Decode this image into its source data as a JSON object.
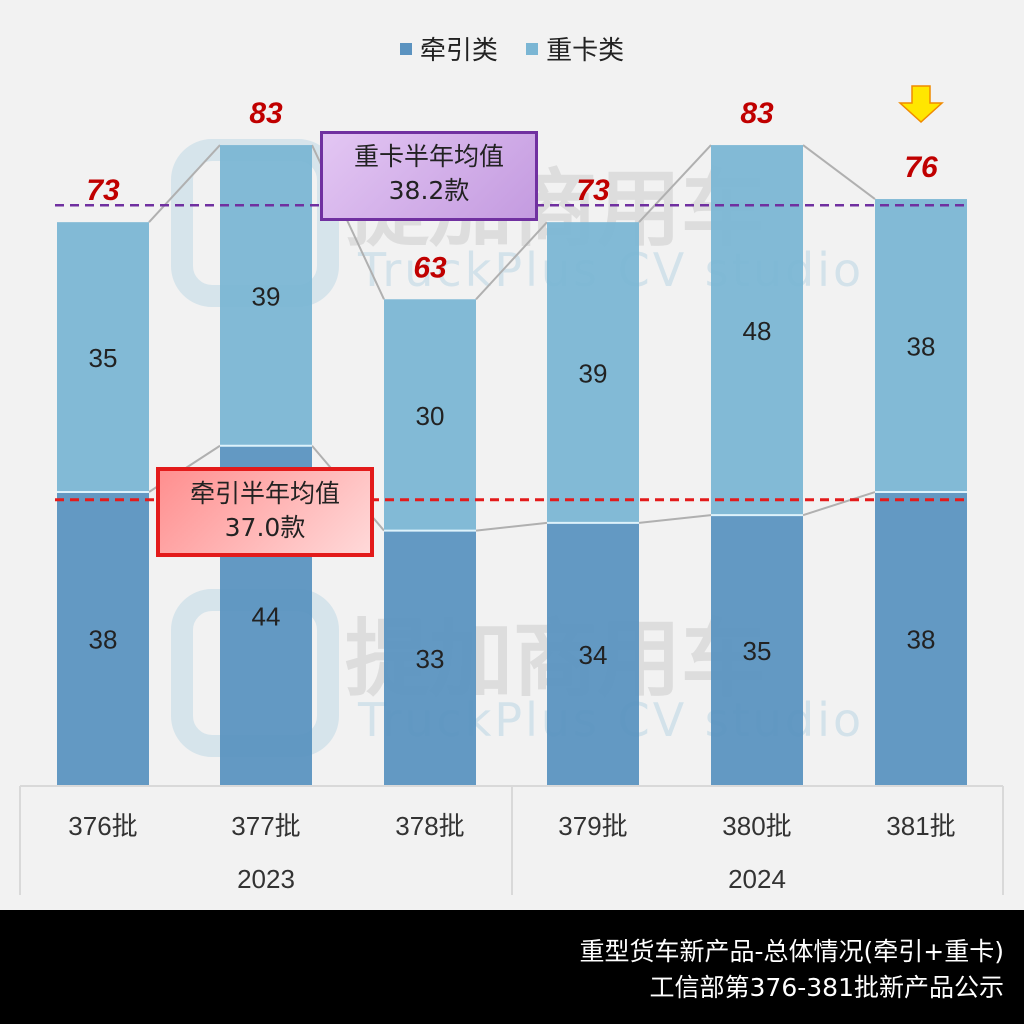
{
  "legend": [
    {
      "label": "牵引类",
      "color": "#5b93c0"
    },
    {
      "label": "重卡类",
      "color": "#7bb6d4"
    }
  ],
  "averages": {
    "heavy": {
      "label": "重卡半年均值",
      "value": "38.2款",
      "color": "#7030a0"
    },
    "traction": {
      "label": "牵引半年均值",
      "value": "37.0款",
      "color": "#e31b1b"
    }
  },
  "watermark": {
    "cn": "提加商用车",
    "en": "TruckPlus CV studio"
  },
  "footer": {
    "line1": "重型货车新产品-总体情况(牵引+重卡)",
    "line2": "工信部第376-381批新产品公示"
  },
  "chart_data": {
    "type": "bar",
    "stacked": true,
    "title": "",
    "categories": [
      "376批",
      "377批",
      "378批",
      "379批",
      "380批",
      "381批"
    ],
    "groups": [
      {
        "label": "2023",
        "categories": [
          "376批",
          "377批",
          "378批"
        ]
      },
      {
        "label": "2024",
        "categories": [
          "379批",
          "380批",
          "381批"
        ]
      }
    ],
    "series": [
      {
        "name": "牵引类",
        "values": [
          38,
          44,
          33,
          34,
          35,
          38
        ],
        "color": "#5b93c0"
      },
      {
        "name": "重卡类",
        "values": [
          35,
          39,
          30,
          39,
          48,
          38
        ],
        "color": "#7bb6d4"
      }
    ],
    "totals": [
      73,
      83,
      63,
      73,
      83,
      76
    ],
    "reference_lines": [
      {
        "label": "重卡半年均值 38.2款",
        "value": 75.2,
        "color": "#7030a0",
        "style": "dashed"
      },
      {
        "label": "牵引半年均值 37.0款",
        "value": 37.0,
        "color": "#e31b1b",
        "style": "dashed"
      }
    ],
    "annotations": [
      {
        "type": "arrow-down",
        "category": "381批",
        "color": "#ffd700"
      }
    ],
    "legend_position": "top",
    "grid": false
  }
}
